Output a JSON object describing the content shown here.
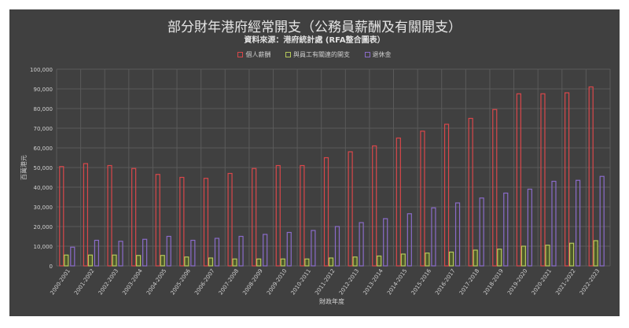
{
  "chart_data": {
    "type": "bar",
    "title": "部分財年港府經常開支（公務員薪酬及有關開支）",
    "subtitle": "資料來源：港府統計處 (RFA整合圖表）",
    "xlabel": "財政年度",
    "ylabel": "百萬港元",
    "ylim": [
      0,
      100000
    ],
    "yticks": [
      "0",
      "10,000",
      "20,000",
      "30,000",
      "40,000",
      "50,000",
      "60,000",
      "70,000",
      "80,000",
      "90,000",
      "100,000"
    ],
    "grid": true,
    "legend_position": "top",
    "categories": [
      "2000-2001",
      "2001-2002",
      "2002-2003",
      "2003-2004",
      "2004-2005",
      "2005-2006",
      "2006-2007",
      "2007-2008",
      "2008-2009",
      "2009-2010",
      "2010-2011",
      "2011-2012",
      "2012-2013",
      "2013-2014",
      "2014-2015",
      "2015-2016",
      "2016-2017",
      "2017-2018",
      "2018-2019",
      "2019-2020",
      "2020-2021",
      "2021-2022",
      "2022-2023"
    ],
    "series": [
      {
        "name": "個人薪酬",
        "color": "#d9474a",
        "values": [
          50500,
          52000,
          51000,
          49500,
          46500,
          45000,
          44500,
          47000,
          49500,
          51000,
          51000,
          55000,
          58000,
          61000,
          65000,
          68500,
          72000,
          75000,
          79500,
          87500,
          87500,
          88000,
          91000
        ]
      },
      {
        "name": "與員工有關連的開支",
        "color": "#b5c95a",
        "values": [
          5500,
          5500,
          5500,
          5300,
          5300,
          4500,
          4000,
          3500,
          3500,
          3500,
          3500,
          4000,
          4500,
          5000,
          6000,
          6500,
          7000,
          8000,
          8500,
          10000,
          10500,
          11500,
          12800
        ]
      },
      {
        "name": "退休金",
        "color": "#8a6bc9",
        "values": [
          9500,
          13000,
          12500,
          13500,
          15000,
          13000,
          14000,
          15000,
          16000,
          17000,
          18000,
          20000,
          22000,
          24000,
          26500,
          29500,
          32000,
          34500,
          37000,
          39000,
          43000,
          43500,
          45500
        ]
      }
    ]
  }
}
